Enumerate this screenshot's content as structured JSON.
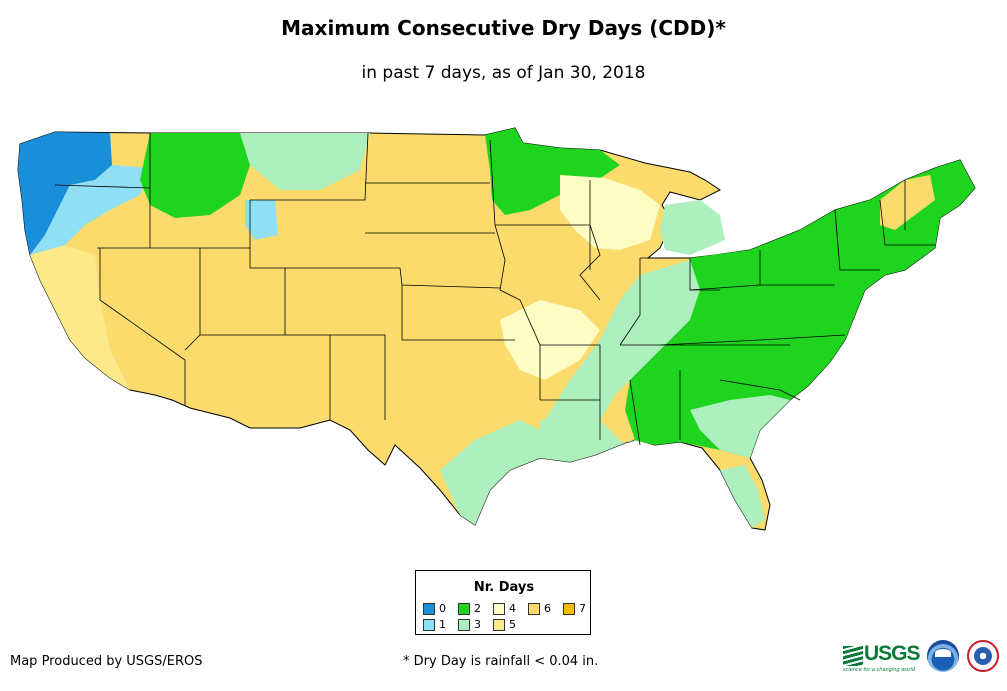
{
  "title": "Maximum Consecutive Dry Days (CDD)*",
  "subtitle": "in past 7 days, as of Jan 30, 2018",
  "legend": {
    "title": "Nr. Days",
    "items": [
      {
        "label": "0",
        "color": "#1a8fd9"
      },
      {
        "label": "1",
        "color": "#8fe0f5"
      },
      {
        "label": "2",
        "color": "#1ed41e"
      },
      {
        "label": "3",
        "color": "#aef0bd"
      },
      {
        "label": "4",
        "color": "#fcfcc4"
      },
      {
        "label": "5",
        "color": "#fbe98a"
      },
      {
        "label": "6",
        "color": "#fadb6c"
      },
      {
        "label": "7",
        "color": "#f5bb0f"
      }
    ]
  },
  "colors": {
    "border": "#000000",
    "background": "#ffffff"
  },
  "footer": {
    "credit": "Map Produced by USGS/EROS",
    "note": "* Dry Day is rainfall < 0.04 in."
  },
  "logos": {
    "usgs_text": "USGS",
    "usgs_tagline": "science for a changing world",
    "noaa": "noaa-logo",
    "nws": "nws-logo"
  }
}
